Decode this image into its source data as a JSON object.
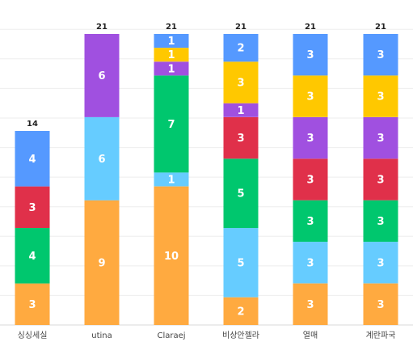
{
  "chart_data": {
    "type": "bar",
    "stacked": true,
    "categories": [
      "싱싱세실",
      "utina",
      "Claraej",
      "비상안젤라",
      "열매",
      "계란파국"
    ],
    "series": [
      {
        "color": "#FFAA40",
        "values": [
          3,
          9,
          10,
          2,
          3,
          3
        ]
      },
      {
        "color": "#66CCFF",
        "values": [
          0,
          6,
          1,
          5,
          3,
          3
        ]
      },
      {
        "color": "#00C76E",
        "values": [
          4,
          0,
          7,
          5,
          3,
          3
        ]
      },
      {
        "color": "#E0304A",
        "values": [
          3,
          0,
          0,
          3,
          3,
          3
        ]
      },
      {
        "color": "#A050E0",
        "values": [
          0,
          6,
          1,
          1,
          3,
          3
        ]
      },
      {
        "color": "#FFC800",
        "values": [
          0,
          0,
          1,
          3,
          3,
          3
        ]
      },
      {
        "color": "#5599FF",
        "values": [
          4,
          0,
          1,
          2,
          3,
          3
        ]
      }
    ],
    "totals": [
      14,
      21,
      21,
      21,
      21,
      21
    ],
    "ylim": [
      0,
      21
    ],
    "grid": true,
    "legend": "none"
  }
}
